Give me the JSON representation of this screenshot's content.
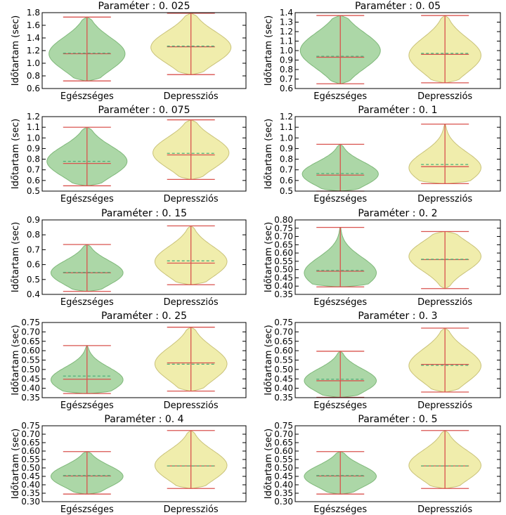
{
  "colors": {
    "green_fill": "#a8d5a2",
    "green_edge": "#7fb87a",
    "yellow_fill": "#efeca8",
    "yellow_edge": "#c9c27a",
    "median_line": "#d9534f",
    "mean_dash": "#4caf7a"
  },
  "chart_data": [
    {
      "type": "violin",
      "title": "Paraméter : 0. 025",
      "ylabel": "Időtartam (sec)",
      "categories": [
        "Egészséges",
        "Depressziós"
      ],
      "ylim": [
        0.6,
        1.8
      ],
      "yticks": [
        "0.6",
        "0.8",
        "1.0",
        "1.2",
        "1.4",
        "1.6",
        "1.8"
      ],
      "yticks_val": [
        0.6,
        0.8,
        1.0,
        1.2,
        1.4,
        1.6,
        1.8
      ],
      "series": [
        {
          "min": 0.72,
          "max": 1.73,
          "median": 1.15,
          "mean": 1.16,
          "widest": 1.15,
          "hw": 0.95
        },
        {
          "min": 0.82,
          "max": 1.79,
          "median": 1.26,
          "mean": 1.27,
          "widest": 1.25,
          "hw": 1.0
        }
      ]
    },
    {
      "type": "violin",
      "title": "Paraméter : 0. 05",
      "ylabel": "Időtartam (sec)",
      "categories": [
        "Egészséges",
        "Depressziós"
      ],
      "ylim": [
        0.6,
        1.4
      ],
      "yticks": [
        "0.6",
        "0.7",
        "0.8",
        "0.9",
        "1.0",
        "1.1",
        "1.2",
        "1.3",
        "1.4"
      ],
      "yticks_val": [
        0.6,
        0.7,
        0.8,
        0.9,
        1.0,
        1.1,
        1.2,
        1.3,
        1.4
      ],
      "series": [
        {
          "min": 0.65,
          "max": 1.37,
          "median": 0.93,
          "mean": 0.94,
          "widest": 1.0,
          "hw": 1.0
        },
        {
          "min": 0.66,
          "max": 1.37,
          "median": 0.96,
          "mean": 0.97,
          "widest": 0.95,
          "hw": 0.9
        }
      ]
    },
    {
      "type": "violin",
      "title": "Paraméter : 0. 075",
      "ylabel": "Időtartam (sec)",
      "categories": [
        "Egészséges",
        "Depressziós"
      ],
      "ylim": [
        0.5,
        1.2
      ],
      "yticks": [
        "0.5",
        "0.6",
        "0.7",
        "0.8",
        "0.9",
        "1.0",
        "1.1",
        "1.2"
      ],
      "yticks_val": [
        0.5,
        0.6,
        0.7,
        0.8,
        0.9,
        1.0,
        1.1,
        1.2
      ],
      "series": [
        {
          "min": 0.55,
          "max": 1.1,
          "median": 0.76,
          "mean": 0.78,
          "widest": 0.78,
          "hw": 1.0
        },
        {
          "min": 0.61,
          "max": 1.17,
          "median": 0.84,
          "mean": 0.855,
          "widest": 0.86,
          "hw": 0.95
        }
      ]
    },
    {
      "type": "violin",
      "title": "Paraméter : 0. 1",
      "ylabel": "Időtartam (sec)",
      "categories": [
        "Egészséges",
        "Depressziós"
      ],
      "ylim": [
        0.5,
        1.2
      ],
      "yticks": [
        "0.5",
        "0.6",
        "0.7",
        "0.8",
        "0.9",
        "1.0",
        "1.1",
        "1.2"
      ],
      "yticks_val": [
        0.5,
        0.6,
        0.7,
        0.8,
        0.9,
        1.0,
        1.1,
        1.2
      ],
      "series": [
        {
          "min": 0.5,
          "max": 0.94,
          "median": 0.65,
          "mean": 0.665,
          "widest": 0.66,
          "hw": 0.95
        },
        {
          "min": 0.57,
          "max": 1.13,
          "median": 0.73,
          "mean": 0.75,
          "widest": 0.72,
          "hw": 0.9
        }
      ]
    },
    {
      "type": "violin",
      "title": "Paraméter : 0. 15",
      "ylabel": "Időtartam (sec)",
      "categories": [
        "Egészséges",
        "Depressziós"
      ],
      "ylim": [
        0.4,
        0.9
      ],
      "yticks": [
        "0.4",
        "0.5",
        "0.6",
        "0.7",
        "0.8",
        "0.9"
      ],
      "yticks_val": [
        0.4,
        0.5,
        0.6,
        0.7,
        0.8,
        0.9
      ],
      "series": [
        {
          "min": 0.42,
          "max": 0.735,
          "median": 0.545,
          "mean": 0.548,
          "widest": 0.545,
          "hw": 0.9
        },
        {
          "min": 0.465,
          "max": 0.86,
          "median": 0.61,
          "mean": 0.625,
          "widest": 0.62,
          "hw": 0.9
        }
      ]
    },
    {
      "type": "violin",
      "title": "Paraméter : 0. 2",
      "ylabel": "Időtartam (sec)",
      "categories": [
        "Egészséges",
        "Depressziós"
      ],
      "ylim": [
        0.35,
        0.8
      ],
      "yticks": [
        "0.35",
        "0.40",
        "0.45",
        "0.50",
        "0.55",
        "0.60",
        "0.65",
        "0.70",
        "0.75",
        "0.80"
      ],
      "yticks_val": [
        0.35,
        0.4,
        0.45,
        0.5,
        0.55,
        0.6,
        0.65,
        0.7,
        0.75,
        0.8
      ],
      "series": [
        {
          "min": 0.395,
          "max": 0.755,
          "median": 0.49,
          "mean": 0.495,
          "widest": 0.48,
          "hw": 0.9
        },
        {
          "min": 0.385,
          "max": 0.73,
          "median": 0.56,
          "mean": 0.562,
          "widest": 0.58,
          "hw": 0.9
        }
      ]
    },
    {
      "type": "violin",
      "title": "Paraméter : 0. 25",
      "ylabel": "Időtartam (sec)",
      "categories": [
        "Egészséges",
        "Depressziós"
      ],
      "ylim": [
        0.35,
        0.75
      ],
      "yticks": [
        "0.35",
        "0.40",
        "0.45",
        "0.50",
        "0.55",
        "0.60",
        "0.65",
        "0.70",
        "0.75"
      ],
      "yticks_val": [
        0.35,
        0.4,
        0.45,
        0.5,
        0.55,
        0.6,
        0.65,
        0.7,
        0.75
      ],
      "series": [
        {
          "min": 0.372,
          "max": 0.627,
          "median": 0.448,
          "mean": 0.465,
          "widest": 0.445,
          "hw": 0.9
        },
        {
          "min": 0.385,
          "max": 0.725,
          "median": 0.535,
          "mean": 0.528,
          "widest": 0.53,
          "hw": 0.9
        }
      ]
    },
    {
      "type": "violin",
      "title": "Paraméter : 0. 3",
      "ylabel": "Időtartam (sec)",
      "categories": [
        "Egészséges",
        "Depressziós"
      ],
      "ylim": [
        0.35,
        0.75
      ],
      "yticks": [
        "0.35",
        "0.40",
        "0.45",
        "0.50",
        "0.55",
        "0.60",
        "0.65",
        "0.70",
        "0.75"
      ],
      "yticks_val": [
        0.35,
        0.4,
        0.45,
        0.5,
        0.55,
        0.6,
        0.65,
        0.7,
        0.75
      ],
      "series": [
        {
          "min": 0.352,
          "max": 0.597,
          "median": 0.44,
          "mean": 0.448,
          "widest": 0.44,
          "hw": 0.9
        },
        {
          "min": 0.38,
          "max": 0.72,
          "median": 0.527,
          "mean": 0.522,
          "widest": 0.52,
          "hw": 0.9
        }
      ]
    },
    {
      "type": "violin",
      "title": "Paraméter : 0. 4",
      "ylabel": "Időtartam (sec)",
      "categories": [
        "Egészséges",
        "Depressziós"
      ],
      "ylim": [
        0.3,
        0.75
      ],
      "yticks": [
        "0.30",
        "0.35",
        "0.40",
        "0.45",
        "0.50",
        "0.55",
        "0.60",
        "0.65",
        "0.70",
        "0.75"
      ],
      "yticks_val": [
        0.3,
        0.35,
        0.4,
        0.45,
        0.5,
        0.55,
        0.6,
        0.65,
        0.7,
        0.75
      ],
      "series": [
        {
          "min": 0.345,
          "max": 0.597,
          "median": 0.452,
          "mean": 0.455,
          "widest": 0.45,
          "hw": 0.9
        },
        {
          "min": 0.378,
          "max": 0.722,
          "median": 0.512,
          "mean": 0.512,
          "widest": 0.515,
          "hw": 0.9
        }
      ]
    },
    {
      "type": "violin",
      "title": "Paraméter : 0. 5",
      "ylabel": "Időtartam (sec)",
      "categories": [
        "Egészséges",
        "Depressziós"
      ],
      "ylim": [
        0.3,
        0.75
      ],
      "yticks": [
        "0.30",
        "0.35",
        "0.40",
        "0.45",
        "0.50",
        "0.55",
        "0.60",
        "0.65",
        "0.70",
        "0.75"
      ],
      "yticks_val": [
        0.3,
        0.35,
        0.4,
        0.45,
        0.5,
        0.55,
        0.6,
        0.65,
        0.7,
        0.75
      ],
      "series": [
        {
          "min": 0.345,
          "max": 0.597,
          "median": 0.452,
          "mean": 0.455,
          "widest": 0.45,
          "hw": 0.9
        },
        {
          "min": 0.378,
          "max": 0.722,
          "median": 0.512,
          "mean": 0.512,
          "widest": 0.515,
          "hw": 0.9
        }
      ]
    }
  ]
}
